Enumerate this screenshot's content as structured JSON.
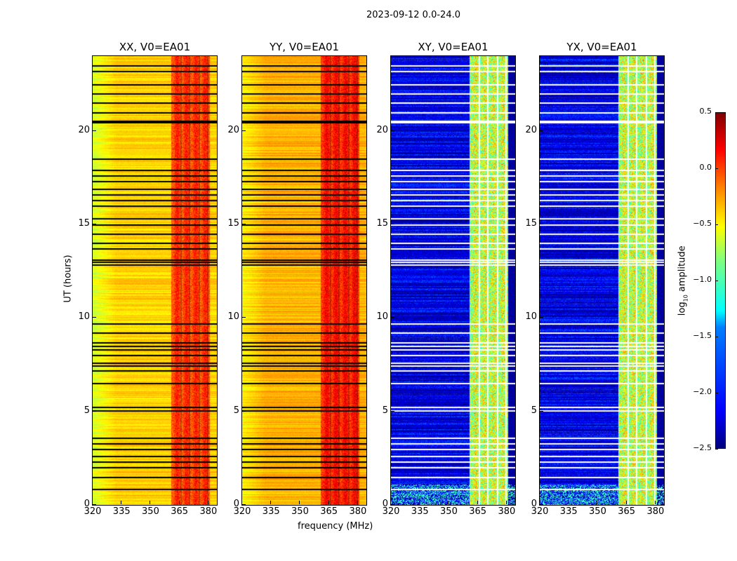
{
  "title": "2023-09-12 0.0-24.0",
  "chart_data": {
    "type": "heatmap",
    "xlabel": "frequency (MHz)",
    "ylabel": "UT (hours)",
    "xlim": [
      320,
      384.4
    ],
    "ylim": [
      0,
      24
    ],
    "xticks": [
      "320",
      "335",
      "350",
      "365",
      "380"
    ],
    "yticks": [
      "0",
      "5",
      "10",
      "15",
      "20"
    ],
    "band_mhz": [
      360.7,
      380.4
    ],
    "band_gaps_mhz": [
      365.5,
      370.2,
      375.0,
      379.6
    ],
    "flagged_hours": [
      0.85,
      1.5,
      2.0,
      2.3,
      2.6,
      3.0,
      3.3,
      3.6,
      5.05,
      5.25,
      6.5,
      7.2,
      7.45,
      7.6,
      8.0,
      8.3,
      8.5,
      8.7,
      9.2,
      9.7,
      12.85,
      13.0,
      13.1,
      13.7,
      14.0,
      14.5,
      15.0,
      15.3,
      16.0,
      16.3,
      16.6,
      16.9,
      17.3,
      17.6,
      17.9,
      18.5,
      20.45,
      20.55,
      21.0,
      21.5,
      22.0,
      22.5,
      23.2,
      23.5
    ],
    "panels": [
      {
        "title": "XX, V0=EA01",
        "base": -0.5,
        "band": -0.05,
        "edge": -0.75,
        "flag_color": "#000000"
      },
      {
        "title": "YY, V0=EA01",
        "base": -0.4,
        "band": 0.05,
        "edge": -0.6,
        "flag_color": "#000000"
      },
      {
        "title": "XY, V0=EA01",
        "base": -2.2,
        "band": -0.8,
        "edge": -2.4,
        "flag_color": "#ffffff"
      },
      {
        "title": "YX, V0=EA01",
        "base": -2.2,
        "band": -0.8,
        "edge": -2.4,
        "flag_color": "#ffffff"
      }
    ],
    "colorbar": {
      "label_main": "log",
      "label_sub": "10",
      "label_rest": " amplitude",
      "range": [
        -2.5,
        0.5
      ],
      "cmap": "jet",
      "ticks": [
        "0.5",
        "0.0",
        "−0.5",
        "−1.0",
        "−1.5",
        "−2.0",
        "−2.5"
      ]
    }
  }
}
